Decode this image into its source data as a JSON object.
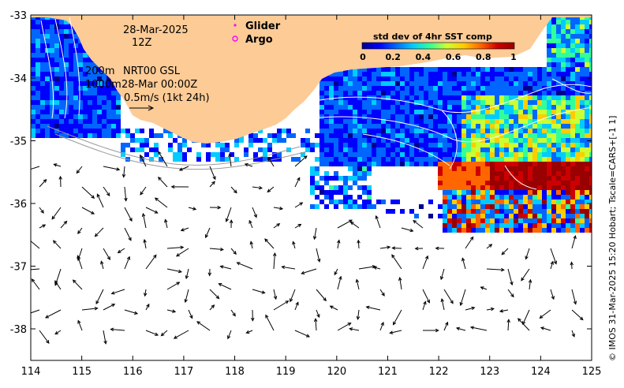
{
  "map": {
    "date_label": "28-Mar-2025",
    "time_label": "12Z",
    "depth_label": "200m",
    "depth2_label": "1000m",
    "product_label": "NRT00 GSL",
    "product_time_label": "28-Mar 00:00Z",
    "scale_arrow_label": "0.5m/s (1kt 24h)",
    "legend": [
      {
        "label": "Glider",
        "symbol": "dot",
        "color": "#ff00ff"
      },
      {
        "label": "Argo",
        "symbol": "circle",
        "color": "#ff00ff"
      }
    ],
    "colorbar": {
      "title": "std dev of 4hr SST comp",
      "ticks": [
        "0",
        "0.2",
        "0.4",
        "0.6",
        "0.8",
        "1"
      ],
      "colors": [
        "#00008b",
        "#0000ff",
        "#0066ff",
        "#00ccff",
        "#33ff99",
        "#ccff33",
        "#ffcc00",
        "#ff6600",
        "#cc0000",
        "#990000"
      ]
    },
    "credit": "© IMOS 31-Mar-2025 15:20 Hobart; Tscale=CARS+[-1 1]",
    "x_axis": {
      "ticks": [
        "114",
        "115",
        "116",
        "117",
        "118",
        "119",
        "120",
        "121",
        "122",
        "123",
        "124",
        "125"
      ]
    },
    "y_axis": {
      "ticks": [
        "-33",
        "-34",
        "-35",
        "-36",
        "-37",
        "-38"
      ]
    },
    "colors": {
      "land": "#fccb96",
      "ocean_missing": "#ffffff",
      "current_arrow": "#000000",
      "contour": "#ffffff"
    }
  }
}
